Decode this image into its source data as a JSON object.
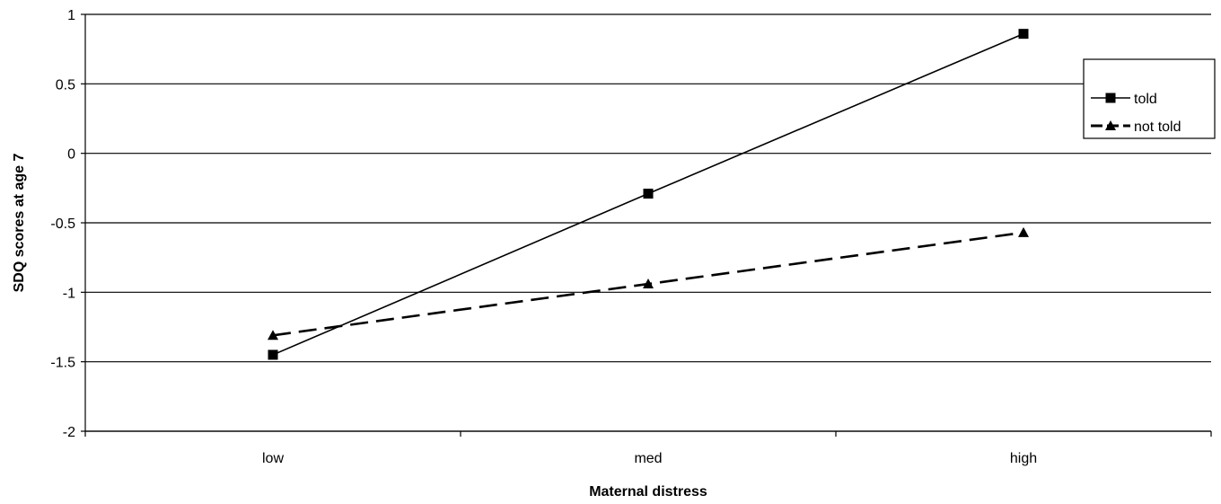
{
  "chart_data": {
    "type": "line",
    "title": "",
    "xlabel": "Maternal distress",
    "ylabel": "SDQ scores at age 7",
    "categories": [
      "low",
      "med",
      "high"
    ],
    "ylim": [
      -2,
      1
    ],
    "yticks": [
      -2,
      -1.5,
      -1,
      -0.5,
      0,
      0.5,
      1
    ],
    "ytick_labels": [
      "-2",
      "-1.5",
      "-1",
      "-0.5",
      "0",
      "0.5",
      "1"
    ],
    "grid": true,
    "legend_position": "top-right",
    "series": [
      {
        "name": "told",
        "values": [
          -1.45,
          -0.29,
          0.86
        ],
        "line_style": "solid",
        "marker": "square",
        "color": "#000000"
      },
      {
        "name": "not told",
        "values": [
          -1.31,
          -0.94,
          -0.57
        ],
        "line_style": "dashed",
        "marker": "triangle",
        "color": "#000000"
      }
    ]
  }
}
